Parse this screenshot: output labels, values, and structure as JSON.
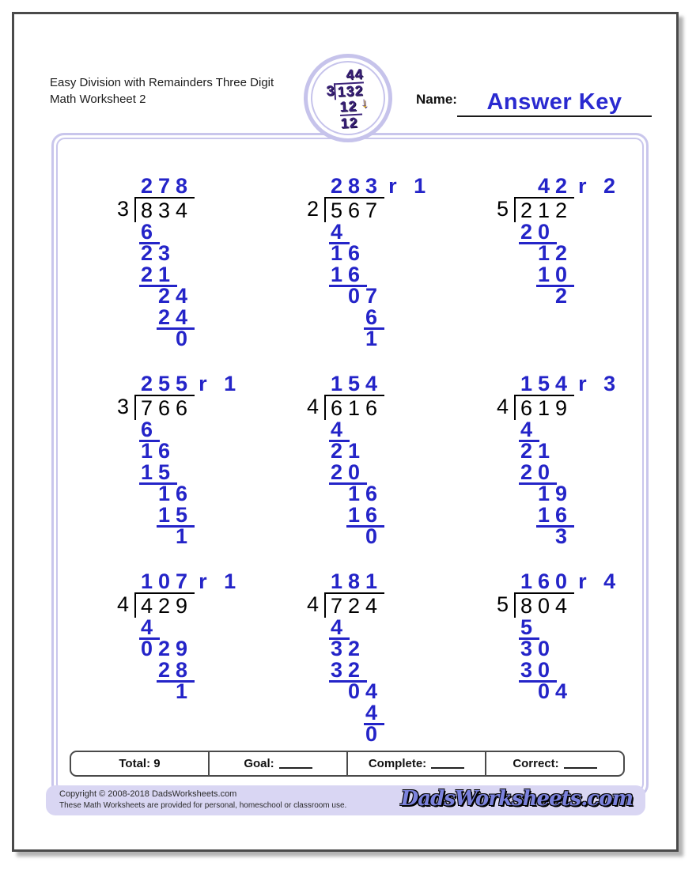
{
  "header": {
    "title_line1": "Easy Division with Remainders Three Digit",
    "title_line2": "Math Worksheet 2",
    "name_label": "Name:",
    "answer_key": "Answer Key"
  },
  "logo_badge": {
    "quotient": "44",
    "divisor": "3",
    "dividend": "132",
    "work_line1": "12",
    "work_line2": "12",
    "arrow": "↓"
  },
  "colors": {
    "answer_blue": "#2424c8",
    "frame_lavender": "#c9c6ec",
    "footer_band": "#d9d6f3",
    "logo_purple": "#3a2178",
    "arrow_yellow": "#f5c518"
  },
  "problems": [
    {
      "divisor": "3",
      "dividend": "834",
      "quotient": "278",
      "remainder": "",
      "work": [
        {
          "text": "6",
          "indent": 0,
          "underline": true
        },
        {
          "text": "23",
          "indent": 0,
          "underline": false
        },
        {
          "text": "21",
          "indent": 0,
          "underline": true
        },
        {
          "text": "24",
          "indent": 1,
          "underline": false
        },
        {
          "text": "24",
          "indent": 1,
          "underline": true
        },
        {
          "text": "0",
          "indent": 2,
          "underline": false
        }
      ]
    },
    {
      "divisor": "2",
      "dividend": "567",
      "quotient": "283",
      "remainder": "r 1",
      "work": [
        {
          "text": "4",
          "indent": 0,
          "underline": true
        },
        {
          "text": "16",
          "indent": 0,
          "underline": false
        },
        {
          "text": "16",
          "indent": 0,
          "underline": true
        },
        {
          "text": "07",
          "indent": 1,
          "underline": false
        },
        {
          "text": "6",
          "indent": 2,
          "underline": true
        },
        {
          "text": "1",
          "indent": 2,
          "underline": false
        }
      ]
    },
    {
      "divisor": "5",
      "dividend": "212",
      "quotient": "42",
      "remainder": "r 2",
      "work": [
        {
          "text": "20",
          "indent": 0,
          "underline": true
        },
        {
          "text": "12",
          "indent": 1,
          "underline": false
        },
        {
          "text": "10",
          "indent": 1,
          "underline": true
        },
        {
          "text": "2",
          "indent": 2,
          "underline": false
        }
      ]
    },
    {
      "divisor": "3",
      "dividend": "766",
      "quotient": "255",
      "remainder": "r 1",
      "work": [
        {
          "text": "6",
          "indent": 0,
          "underline": true
        },
        {
          "text": "16",
          "indent": 0,
          "underline": false
        },
        {
          "text": "15",
          "indent": 0,
          "underline": true
        },
        {
          "text": "16",
          "indent": 1,
          "underline": false
        },
        {
          "text": "15",
          "indent": 1,
          "underline": true
        },
        {
          "text": "1",
          "indent": 2,
          "underline": false
        }
      ]
    },
    {
      "divisor": "4",
      "dividend": "616",
      "quotient": "154",
      "remainder": "",
      "work": [
        {
          "text": "4",
          "indent": 0,
          "underline": true
        },
        {
          "text": "21",
          "indent": 0,
          "underline": false
        },
        {
          "text": "20",
          "indent": 0,
          "underline": true
        },
        {
          "text": "16",
          "indent": 1,
          "underline": false
        },
        {
          "text": "16",
          "indent": 1,
          "underline": true
        },
        {
          "text": "0",
          "indent": 2,
          "underline": false
        }
      ]
    },
    {
      "divisor": "4",
      "dividend": "619",
      "quotient": "154",
      "remainder": "r 3",
      "work": [
        {
          "text": "4",
          "indent": 0,
          "underline": true
        },
        {
          "text": "21",
          "indent": 0,
          "underline": false
        },
        {
          "text": "20",
          "indent": 0,
          "underline": true
        },
        {
          "text": "19",
          "indent": 1,
          "underline": false
        },
        {
          "text": "16",
          "indent": 1,
          "underline": true
        },
        {
          "text": "3",
          "indent": 2,
          "underline": false
        }
      ]
    },
    {
      "divisor": "4",
      "dividend": "429",
      "quotient": "107",
      "remainder": "r 1",
      "work": [
        {
          "text": "4",
          "indent": 0,
          "underline": true
        },
        {
          "text": "029",
          "indent": 0,
          "underline": false
        },
        {
          "text": "28",
          "indent": 1,
          "underline": true
        },
        {
          "text": "1",
          "indent": 2,
          "underline": false
        }
      ]
    },
    {
      "divisor": "4",
      "dividend": "724",
      "quotient": "181",
      "remainder": "",
      "work": [
        {
          "text": "4",
          "indent": 0,
          "underline": true
        },
        {
          "text": "32",
          "indent": 0,
          "underline": false
        },
        {
          "text": "32",
          "indent": 0,
          "underline": true
        },
        {
          "text": "04",
          "indent": 1,
          "underline": false
        },
        {
          "text": "4",
          "indent": 2,
          "underline": true
        },
        {
          "text": "0",
          "indent": 2,
          "underline": false
        }
      ]
    },
    {
      "divisor": "5",
      "dividend": "804",
      "quotient": "160",
      "remainder": "r 4",
      "work": [
        {
          "text": "5",
          "indent": 0,
          "underline": true
        },
        {
          "text": "30",
          "indent": 0,
          "underline": false
        },
        {
          "text": "30",
          "indent": 0,
          "underline": true
        },
        {
          "text": "04",
          "indent": 1,
          "underline": false
        }
      ]
    }
  ],
  "score_bar": {
    "cells": [
      {
        "label": "Total: 9",
        "blank": false
      },
      {
        "label": "Goal:",
        "blank": true
      },
      {
        "label": "Complete:",
        "blank": true
      },
      {
        "label": "Correct:",
        "blank": true
      }
    ]
  },
  "footer": {
    "copyright": "Copyright © 2008-2018 DadsWorksheets.com",
    "usage": "These Math Worksheets are provided for personal, homeschool or classroom use.",
    "logo_text": "DadsWorksheets.com"
  }
}
